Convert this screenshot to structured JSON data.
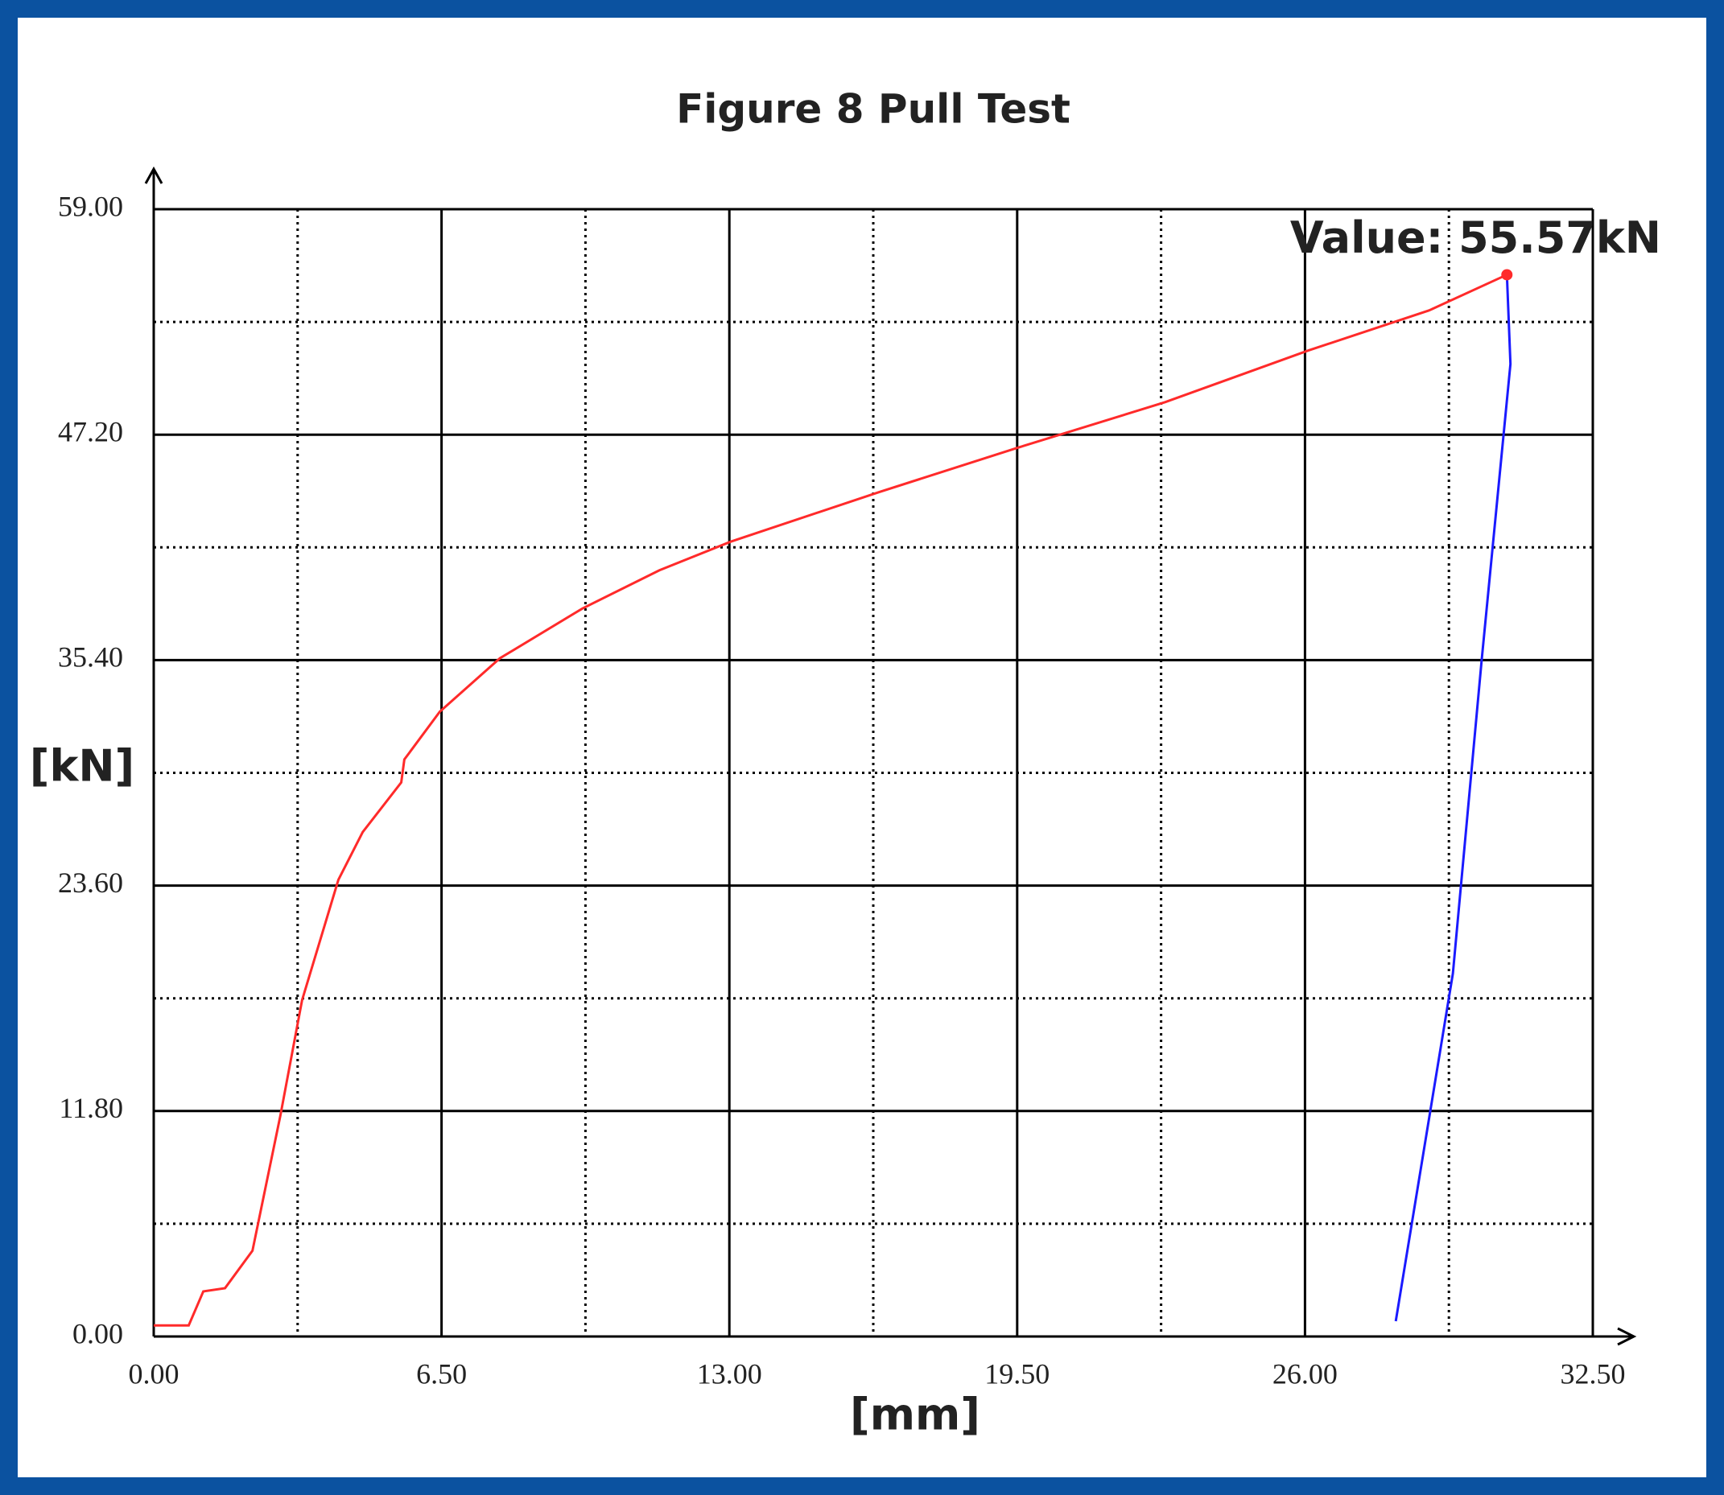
{
  "chart_data": {
    "type": "line",
    "title": "Figure 8 Pull Test",
    "x_label": "[mm]",
    "y_label": "[kN]",
    "xlim": [
      0,
      32.5
    ],
    "ylim": [
      0,
      59
    ],
    "xticks": [
      {
        "value": 0,
        "label": "0.00"
      },
      {
        "value": 6.5,
        "label": "6.50"
      },
      {
        "value": 13,
        "label": "13.00"
      },
      {
        "value": 19.5,
        "label": "19.50"
      },
      {
        "value": 26,
        "label": "26.00"
      },
      {
        "value": 32.5,
        "label": "32.50"
      }
    ],
    "yticks": [
      {
        "value": 0,
        "label": "0.00"
      },
      {
        "value": 11.8,
        "label": "11.80"
      },
      {
        "value": 23.6,
        "label": "23.60"
      },
      {
        "value": 35.4,
        "label": "35.40"
      },
      {
        "value": 47.2,
        "label": "47.20"
      },
      {
        "value": 59,
        "label": "59.00"
      }
    ],
    "grid": true,
    "series": [
      {
        "color": "#ff2a2a",
        "x": [
          0,
          0.79,
          1.12,
          1.61,
          2.23,
          2.86,
          3.35,
          4.17,
          4.72,
          5.59,
          5.66,
          6.46,
          7.82,
          9.68,
          11.42,
          13.03,
          16.39,
          19.49,
          22.84,
          26.07,
          28.8,
          30.56
        ],
        "values": [
          0.58,
          0.58,
          2.36,
          2.53,
          4.49,
          11.56,
          17.6,
          23.9,
          26.4,
          29.0,
          30.2,
          32.7,
          35.5,
          38.1,
          40.1,
          41.6,
          44.2,
          46.5,
          48.9,
          51.6,
          53.7,
          55.57
        ]
      },
      {
        "color": "#1a1aff",
        "x": [
          30.56,
          30.64,
          29.99,
          29.34,
          28.05
        ],
        "values": [
          55.57,
          50.9,
          35.4,
          19.0,
          0.8
        ]
      }
    ],
    "annotation": {
      "text": "Value: 55.57kN",
      "x": 30.56,
      "y": 55.57,
      "color": "#ff2a2a"
    }
  }
}
